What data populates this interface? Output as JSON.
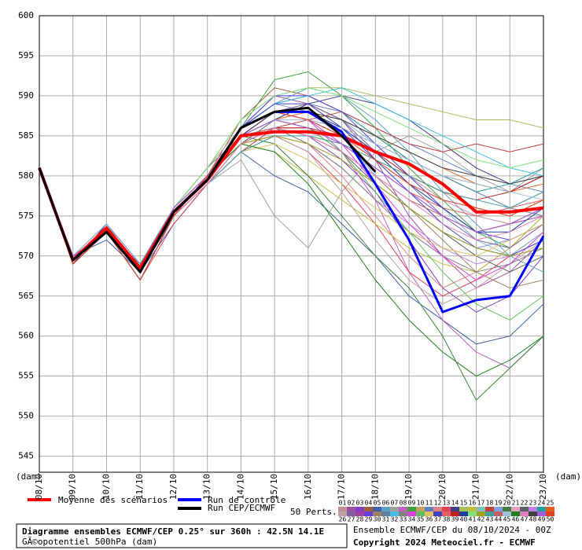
{
  "chart_data": {
    "type": "line",
    "x_label_left": "(dam)",
    "x_label_right": "(dam)",
    "categories": [
      "08/10",
      "09/10",
      "10/10",
      "11/10",
      "12/10",
      "13/10",
      "14/10",
      "15/10",
      "16/10",
      "17/10",
      "18/10",
      "19/10",
      "20/10",
      "21/10",
      "22/10",
      "23/10"
    ],
    "ylim": [
      543,
      600
    ],
    "yticks": [
      545,
      550,
      555,
      560,
      565,
      570,
      575,
      580,
      585,
      590,
      595,
      600
    ],
    "grid": true,
    "series": [
      {
        "name": "Moyenne des scénarios",
        "color": "#ff0000",
        "width": 4,
        "values": [
          581,
          569.5,
          573.5,
          568.5,
          575.5,
          579.5,
          585,
          585.5,
          585.5,
          585,
          583,
          581.5,
          579,
          575.5,
          575.5,
          576
        ]
      },
      {
        "name": "Run de contrôle",
        "color": "#0000ff",
        "width": 3,
        "values": [
          581,
          569.5,
          573,
          568,
          575.5,
          579.5,
          586,
          588,
          588,
          585.5,
          579,
          572,
          563,
          564.5,
          565,
          572.5
        ]
      },
      {
        "name": "Run CEP/ECMWF",
        "color": "#000000",
        "width": 3,
        "values": [
          581,
          569.5,
          573,
          568,
          575.5,
          579.5,
          586,
          588,
          588.5,
          585,
          580.5,
          null,
          null,
          null,
          null,
          null
        ]
      }
    ],
    "perturbations_label": "50 Perts.",
    "perturbations": [
      {
        "name": "01",
        "color": "#c09090",
        "values": [
          581,
          570,
          573,
          568,
          575,
          580,
          585,
          588,
          588,
          586,
          583,
          580,
          577,
          575,
          574,
          576
        ]
      },
      {
        "name": "02",
        "color": "#a050a0",
        "values": [
          581,
          569,
          574,
          568,
          576,
          580,
          586,
          590,
          589,
          587,
          582,
          575,
          570,
          566,
          568,
          572
        ]
      },
      {
        "name": "03",
        "color": "#8040c0",
        "values": [
          581,
          570,
          573,
          567,
          575,
          579,
          584,
          586,
          585,
          582,
          578,
          572,
          566,
          563,
          565,
          570
        ]
      },
      {
        "name": "04",
        "color": "#a06040",
        "values": [
          581,
          569,
          573,
          568,
          575,
          580,
          587,
          591,
          590,
          588,
          585,
          582,
          580,
          579,
          578,
          580
        ]
      },
      {
        "name": "05",
        "color": "#4060a0",
        "values": [
          580.5,
          570,
          572,
          568,
          574,
          579,
          583,
          580,
          578,
          574,
          570,
          565,
          562,
          559,
          560,
          564
        ]
      },
      {
        "name": "06",
        "color": "#60a0c0",
        "values": [
          581,
          569,
          573,
          569,
          576,
          581,
          586,
          589,
          591,
          590,
          587,
          583,
          578,
          574,
          570,
          568
        ]
      },
      {
        "name": "07",
        "color": "#a0a0a0",
        "values": [
          581,
          570,
          574,
          568,
          575,
          579,
          582,
          575,
          571,
          578,
          583,
          585,
          583,
          580,
          578,
          581
        ]
      },
      {
        "name": "08",
        "color": "#c060c0",
        "values": [
          581,
          569,
          573,
          567,
          575,
          580,
          585,
          588,
          587,
          583,
          577,
          568,
          562,
          558,
          556,
          560
        ]
      },
      {
        "name": "09",
        "color": "#40a040",
        "values": [
          581,
          570,
          573,
          568,
          576,
          581,
          586,
          592,
          593,
          590,
          586,
          581,
          577,
          573,
          571,
          575
        ]
      },
      {
        "name": "10",
        "color": "#c0a060",
        "values": [
          581,
          569,
          573,
          568,
          575,
          580,
          584,
          586,
          585,
          584,
          582,
          580,
          578,
          576,
          575,
          577
        ]
      },
      {
        "name": "11",
        "color": "#6080c0",
        "values": [
          581,
          570,
          574,
          569,
          576,
          580,
          585,
          587,
          589,
          588,
          586,
          584,
          582,
          580,
          579,
          578
        ]
      },
      {
        "name": "12",
        "color": "#e08080",
        "values": [
          581,
          569.5,
          573,
          568,
          575,
          579,
          583,
          585,
          584,
          580,
          575,
          570,
          566,
          568,
          571,
          574
        ]
      },
      {
        "name": "13",
        "color": "#e04060",
        "values": [
          581,
          570,
          573,
          567,
          574,
          579,
          584,
          585,
          583,
          579,
          574,
          568,
          565,
          567,
          570,
          573
        ]
      },
      {
        "name": "14",
        "color": "#404080",
        "values": [
          581,
          569,
          573,
          568,
          575,
          580,
          585,
          587,
          589,
          590,
          589,
          587,
          584,
          581,
          579,
          580
        ]
      },
      {
        "name": "15",
        "color": "#a0c060",
        "values": [
          581,
          570,
          574,
          568,
          576,
          581,
          587,
          590,
          591,
          591,
          590,
          589,
          588,
          587,
          587,
          586
        ]
      },
      {
        "name": "16",
        "color": "#c0c040",
        "values": [
          581,
          569,
          573,
          568,
          575,
          580,
          584,
          583,
          580,
          577,
          574,
          571,
          569,
          568,
          571,
          575
        ]
      },
      {
        "name": "17",
        "color": "#80c0c0",
        "values": [
          581,
          570,
          573,
          568,
          576,
          580,
          585,
          588,
          589,
          587,
          584,
          580,
          576,
          572,
          570,
          573
        ]
      },
      {
        "name": "18",
        "color": "#c04040",
        "values": [
          581,
          569,
          573,
          568,
          575,
          579,
          583,
          586,
          587,
          588,
          586,
          584,
          583,
          584,
          583,
          584
        ]
      },
      {
        "name": "19",
        "color": "#80a0e0",
        "values": [
          581,
          570,
          573,
          567,
          575,
          580,
          586,
          589,
          588,
          585,
          580,
          576,
          573,
          571,
          572,
          574
        ]
      },
      {
        "name": "20",
        "color": "#408040",
        "values": [
          581,
          569,
          574,
          568,
          575,
          580,
          585,
          584,
          580,
          575,
          570,
          566,
          560,
          552,
          556,
          560
        ]
      },
      {
        "name": "21",
        "color": "#e0a0c0",
        "values": [
          581,
          570,
          573,
          568,
          576,
          581,
          586,
          588,
          587,
          585,
          582,
          579,
          577,
          575,
          576,
          578
        ]
      },
      {
        "name": "22",
        "color": "#606060",
        "values": [
          581,
          569,
          573,
          568,
          575,
          579,
          584,
          587,
          586,
          583,
          579,
          576,
          573,
          570,
          568,
          570
        ]
      },
      {
        "name": "23",
        "color": "#c080e0",
        "values": [
          581,
          570,
          573,
          568,
          575,
          580,
          585,
          586,
          584,
          581,
          577,
          574,
          571,
          569,
          570,
          572
        ]
      },
      {
        "name": "24",
        "color": "#20a0a0",
        "values": [
          581,
          569,
          573,
          567,
          575,
          580,
          586,
          589,
          590,
          588,
          585,
          582,
          580,
          578,
          579,
          581
        ]
      },
      {
        "name": "25",
        "color": "#e06020",
        "values": [
          581,
          570,
          574,
          568,
          576,
          580,
          585,
          587,
          588,
          587,
          585,
          583,
          581,
          579,
          578,
          579
        ]
      },
      {
        "name": "26",
        "color": "#c0a0a0",
        "values": [
          581,
          569,
          573,
          568,
          575,
          579,
          583,
          585,
          583,
          578,
          572,
          567,
          564,
          566,
          569,
          572
        ]
      },
      {
        "name": "27",
        "color": "#8060a0",
        "values": [
          581,
          570,
          573,
          568,
          575,
          580,
          585,
          588,
          589,
          587,
          583,
          579,
          575,
          572,
          571,
          574
        ]
      },
      {
        "name": "28",
        "color": "#a040a0",
        "values": [
          581,
          569,
          573,
          568,
          575,
          580,
          584,
          586,
          586,
          584,
          581,
          578,
          575,
          573,
          574,
          575
        ]
      },
      {
        "name": "29",
        "color": "#6040e0",
        "values": [
          581,
          570,
          574,
          568,
          576,
          580,
          586,
          590,
          590,
          588,
          584,
          580,
          576,
          573,
          572,
          574
        ]
      },
      {
        "name": "30",
        "color": "#a08060",
        "values": [
          581,
          569,
          573,
          567,
          575,
          579,
          584,
          586,
          585,
          583,
          580,
          576,
          572,
          568,
          566,
          567
        ]
      },
      {
        "name": "31",
        "color": "#6080a0",
        "values": [
          581,
          570,
          573,
          568,
          575,
          580,
          585,
          587,
          587,
          586,
          584,
          582,
          580,
          578,
          576,
          575
        ]
      },
      {
        "name": "32",
        "color": "#40c0e0",
        "values": [
          581,
          569,
          573,
          568,
          575,
          580,
          586,
          589,
          590,
          591,
          589,
          587,
          585,
          583,
          581,
          580
        ]
      },
      {
        "name": "33",
        "color": "#808080",
        "values": [
          581,
          570,
          573,
          568,
          576,
          581,
          585,
          586,
          584,
          581,
          577,
          573,
          570,
          568,
          569,
          571
        ]
      },
      {
        "name": "34",
        "color": "#e040e0",
        "values": [
          581,
          569,
          573,
          568,
          575,
          580,
          585,
          588,
          587,
          584,
          579,
          574,
          570,
          567,
          569,
          573
        ]
      },
      {
        "name": "35",
        "color": "#60c060",
        "values": [
          581,
          570,
          574,
          568,
          575,
          580,
          585,
          587,
          586,
          583,
          578,
          573,
          568,
          564,
          562,
          565
        ]
      },
      {
        "name": "36",
        "color": "#e0c060",
        "values": [
          581,
          569,
          573,
          568,
          575,
          579,
          583,
          584,
          582,
          579,
          576,
          573,
          571,
          570,
          572,
          574
        ]
      },
      {
        "name": "37",
        "color": "#4040c0",
        "values": [
          581,
          570,
          573,
          567,
          575,
          580,
          586,
          589,
          589,
          586,
          582,
          578,
          574,
          571,
          570,
          572
        ]
      },
      {
        "name": "38",
        "color": "#e06060",
        "values": [
          581,
          569,
          573,
          568,
          576,
          580,
          585,
          587,
          586,
          584,
          581,
          578,
          576,
          575,
          576,
          577
        ]
      },
      {
        "name": "39",
        "color": "#c02020",
        "values": [
          581,
          570,
          573,
          568,
          575,
          580,
          584,
          586,
          586,
          585,
          583,
          580,
          578,
          577,
          578,
          580
        ]
      },
      {
        "name": "40",
        "color": "#2040a0",
        "values": [
          581,
          569,
          574,
          568,
          575,
          580,
          586,
          588,
          588,
          586,
          583,
          579,
          576,
          573,
          573,
          576
        ]
      },
      {
        "name": "41",
        "color": "#80e080",
        "values": [
          581,
          570,
          573,
          568,
          576,
          581,
          587,
          590,
          591,
          590,
          588,
          586,
          584,
          582,
          581,
          582
        ]
      },
      {
        "name": "42",
        "color": "#a0a020",
        "values": [
          581,
          569,
          573,
          568,
          575,
          580,
          584,
          585,
          584,
          582,
          579,
          576,
          573,
          571,
          570,
          571
        ]
      },
      {
        "name": "43",
        "color": "#40a0a0",
        "values": [
          581,
          570,
          573,
          567,
          575,
          579,
          583,
          585,
          585,
          584,
          582,
          580,
          578,
          577,
          576,
          578
        ]
      },
      {
        "name": "44",
        "color": "#c06060",
        "values": [
          581,
          569,
          573,
          568,
          575,
          580,
          585,
          586,
          585,
          583,
          580,
          577,
          575,
          573,
          574,
          576
        ]
      },
      {
        "name": "45",
        "color": "#a0c0e0",
        "values": [
          581,
          570,
          574,
          568,
          576,
          580,
          585,
          587,
          587,
          586,
          584,
          582,
          580,
          579,
          578,
          577
        ]
      },
      {
        "name": "46",
        "color": "#208020",
        "values": [
          581,
          569,
          573,
          568,
          575,
          580,
          584,
          583,
          579,
          573,
          567,
          562,
          558,
          555,
          557,
          560
        ]
      },
      {
        "name": "47",
        "color": "#e080c0",
        "values": [
          581,
          570,
          573,
          568,
          575,
          579,
          584,
          586,
          585,
          583,
          580,
          577,
          574,
          572,
          573,
          575
        ]
      },
      {
        "name": "48",
        "color": "#404040",
        "values": [
          581,
          569,
          573,
          568,
          575,
          580,
          585,
          588,
          588,
          587,
          585,
          583,
          581,
          580,
          579,
          580
        ]
      },
      {
        "name": "49",
        "color": "#a060e0",
        "values": [
          581,
          570,
          573,
          568,
          576,
          580,
          585,
          587,
          586,
          584,
          581,
          578,
          575,
          573,
          574,
          576
        ]
      },
      {
        "name": "50",
        "color": "#e04020",
        "values": [
          581,
          569,
          573,
          567,
          575,
          580,
          586,
          588,
          587,
          585,
          582,
          579,
          577,
          576,
          575,
          577
        ]
      }
    ],
    "info_title": "Diagramme ensembles ECMWF/CEP 0.25° sur 360h : 42.5N 14.1E",
    "info_subtitle": "GÃ©opotentiel 500hPa (dam)",
    "run_info": "Ensemble ECMWF/CEP du 08/10/2024 - 00Z",
    "copyright": "Copyright 2024 Meteociel.fr - ECMWF"
  }
}
